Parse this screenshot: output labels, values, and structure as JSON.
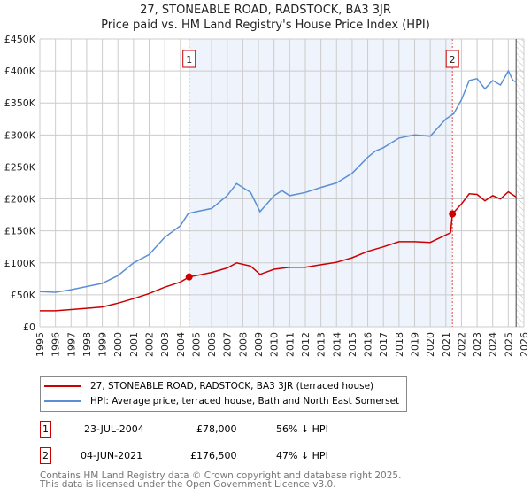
{
  "chart_data": {
    "type": "line",
    "title": "27, STONEABLE ROAD, RADSTOCK, BA3 3JR",
    "subtitle": "Price paid vs. HM Land Registry's House Price Index (HPI)",
    "xlim": [
      1995,
      2026
    ],
    "ylim": [
      0,
      450000
    ],
    "y_ticks": [
      {
        "v": 0,
        "l": "£0"
      },
      {
        "v": 50000,
        "l": "£50K"
      },
      {
        "v": 100000,
        "l": "£100K"
      },
      {
        "v": 150000,
        "l": "£150K"
      },
      {
        "v": 200000,
        "l": "£200K"
      },
      {
        "v": 250000,
        "l": "£250K"
      },
      {
        "v": 300000,
        "l": "£300K"
      },
      {
        "v": 350000,
        "l": "£350K"
      },
      {
        "v": 400000,
        "l": "£400K"
      },
      {
        "v": 450000,
        "l": "£450K"
      }
    ],
    "x_ticks": [
      "1995",
      "1996",
      "1997",
      "1998",
      "1999",
      "2000",
      "2001",
      "2002",
      "2003",
      "2004",
      "2005",
      "2006",
      "2007",
      "2008",
      "2009",
      "2010",
      "2011",
      "2012",
      "2013",
      "2014",
      "2015",
      "2016",
      "2017",
      "2018",
      "2019",
      "2020",
      "2021",
      "2022",
      "2023",
      "2024",
      "2025",
      "2026"
    ],
    "grid": true,
    "shaded_range": [
      2004.56,
      2021.42
    ],
    "hatched_from": 2025.5,
    "series": [
      {
        "name": "27, STONEABLE ROAD, RADSTOCK, BA3 3JR (terraced house)",
        "color": "#cc0000",
        "x": [
          1995,
          1996,
          1997,
          1998,
          1999,
          2000,
          2001,
          2002,
          2003,
          2004,
          2004.56,
          2005,
          2006,
          2007,
          2007.6,
          2008.5,
          2009.1,
          2010,
          2011,
          2012,
          2013,
          2014,
          2015,
          2016,
          2017,
          2018,
          2019,
          2020,
          2021.3,
          2021.42,
          2022,
          2022.5,
          2023,
          2023.5,
          2024,
          2024.5,
          2025,
          2025.5
        ],
        "y": [
          25000,
          25000,
          27000,
          29000,
          31000,
          37000,
          44000,
          52000,
          62000,
          70000,
          78000,
          80000,
          85000,
          92000,
          100000,
          95000,
          82000,
          90000,
          93000,
          93000,
          97000,
          101000,
          108000,
          118000,
          125000,
          133000,
          133000,
          132000,
          147000,
          176500,
          192000,
          208000,
          207000,
          197000,
          205000,
          200000,
          211000,
          203000
        ]
      },
      {
        "name": "HPI: Average price, terraced house, Bath and North East Somerset",
        "color": "#5b8fd4",
        "x": [
          1995,
          1996,
          1997,
          1998,
          1999,
          2000,
          2001,
          2002,
          2003,
          2004,
          2004.5,
          2005,
          2006,
          2007,
          2007.6,
          2008.5,
          2009.1,
          2010,
          2010.5,
          2011,
          2012,
          2013,
          2014,
          2015,
          2016,
          2016.5,
          2017,
          2018,
          2019,
          2020,
          2021,
          2021.5,
          2022,
          2022.5,
          2023,
          2023.5,
          2024,
          2024.5,
          2025,
          2025.3,
          2025.5
        ],
        "y": [
          55000,
          54000,
          58000,
          63000,
          68000,
          80000,
          100000,
          113000,
          140000,
          158000,
          177000,
          180000,
          185000,
          205000,
          224000,
          210000,
          180000,
          205000,
          213000,
          205000,
          210000,
          218000,
          225000,
          240000,
          265000,
          275000,
          280000,
          295000,
          300000,
          298000,
          325000,
          333000,
          355000,
          385000,
          388000,
          372000,
          385000,
          378000,
          400000,
          385000,
          383000
        ]
      }
    ],
    "markers": [
      {
        "label": "1",
        "x": 2004.56,
        "y": 78000
      },
      {
        "label": "2",
        "x": 2021.42,
        "y": 176500
      }
    ]
  },
  "sales": [
    {
      "n": "1",
      "date": "23-JUL-2004",
      "price": "£78,000",
      "delta": "56% ↓ HPI"
    },
    {
      "n": "2",
      "date": "04-JUN-2021",
      "price": "£176,500",
      "delta": "47% ↓ HPI"
    }
  ],
  "footer": {
    "line1": "Contains HM Land Registry data © Crown copyright and database right 2025.",
    "line2": "This data is licensed under the Open Government Licence v3.0."
  }
}
